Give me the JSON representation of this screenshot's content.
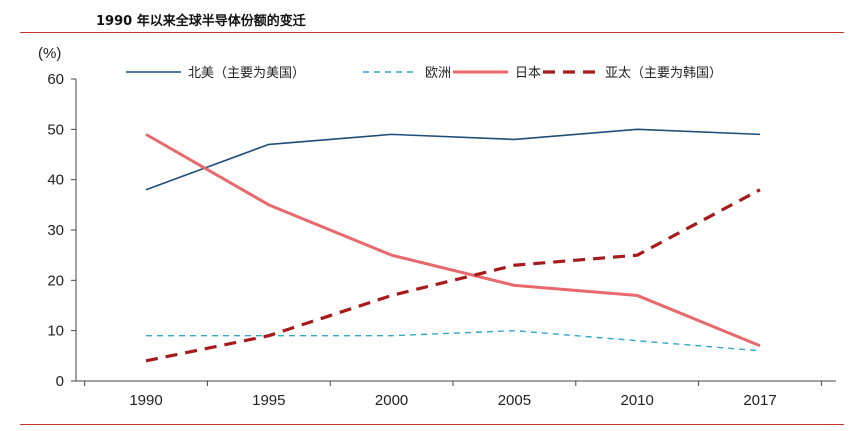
{
  "chart_data": {
    "type": "line",
    "title": "1990 年以来全球半导体份额的变迁",
    "ylabel": "(%)",
    "xlabel": "",
    "categories": [
      "1990",
      "1995",
      "2000",
      "2005",
      "2010",
      "2017"
    ],
    "ylim": [
      0,
      60
    ],
    "yticks": [
      0,
      10,
      20,
      30,
      40,
      50,
      60
    ],
    "grid": false,
    "legend_position": "top",
    "series": [
      {
        "name": "北美（主要为美国）",
        "values": [
          38,
          47,
          49,
          48,
          50,
          49
        ],
        "color": "#1f4e79",
        "style": "solid"
      },
      {
        "name": "欧洲",
        "values": [
          9,
          9,
          9,
          10,
          8,
          6
        ],
        "color": "#2fa9c9",
        "style": "dashed"
      },
      {
        "name": "日本",
        "values": [
          49,
          35,
          25,
          19,
          17,
          7
        ],
        "color": "#e8696b",
        "style": "solid"
      },
      {
        "name": "亚太（主要为韩国）",
        "values": [
          4,
          9,
          17,
          23,
          25,
          38
        ],
        "color": "#a81a1a",
        "style": "dashed"
      }
    ]
  }
}
